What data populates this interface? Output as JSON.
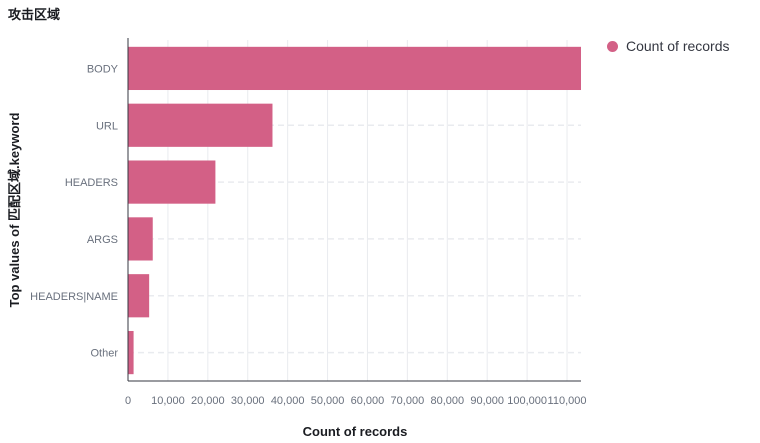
{
  "panel": {
    "title": "攻击区域"
  },
  "colors": {
    "bar": "#d36086",
    "grid": "#e9ebef",
    "axis": "#343741",
    "tick": "#69707d"
  },
  "legend": {
    "items": [
      {
        "label": "Count of records"
      }
    ]
  },
  "chart_data": {
    "type": "bar",
    "orientation": "horizontal",
    "categories": [
      "BODY",
      "URL",
      "HEADERS",
      "ARGS",
      "HEADERS|NAME",
      "Other"
    ],
    "series": [
      {
        "name": "Count of records",
        "values": [
          113500,
          36200,
          21900,
          6200,
          5300,
          1400
        ]
      }
    ],
    "xlabel": "Count of records",
    "ylabel": "Top values of 匹配区域.keyword",
    "xlim": [
      0,
      113500
    ],
    "xticks": [
      0,
      10000,
      20000,
      30000,
      40000,
      50000,
      60000,
      70000,
      80000,
      90000,
      100000,
      110000
    ],
    "xtick_labels": [
      "0",
      "10,000",
      "20,000",
      "30,000",
      "40,000",
      "50,000",
      "60,000",
      "70,000",
      "80,000",
      "90,000",
      "100,000",
      "110,000"
    ],
    "grid": true,
    "legend_position": "top-right"
  }
}
